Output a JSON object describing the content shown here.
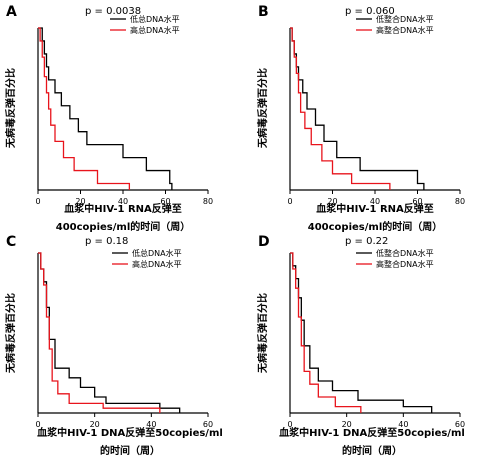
{
  "chart_data": [
    {
      "type": "line",
      "panel": "A",
      "pvalue": "p = 0.0038",
      "xlabel": [
        "血浆中HIV-1 RNA反弹至",
        "400copies/ml的时间（周）"
      ],
      "ylabel": "无病毒反弹百分比",
      "xlim": [
        0,
        80
      ],
      "ylim": [
        0,
        100
      ],
      "xticks": [
        "0",
        "20",
        "40",
        "60",
        "80"
      ],
      "series": [
        {
          "name": "低总DNA水平",
          "color": "#000000",
          "x": [
            0,
            2,
            3,
            4,
            5,
            8,
            11,
            15,
            19,
            23,
            40,
            51,
            62,
            63
          ],
          "y": [
            100,
            92,
            84,
            76,
            68,
            60,
            52,
            44,
            36,
            28,
            20,
            12,
            4,
            0
          ]
        },
        {
          "name": "高总DNA水平",
          "color": "#e8141c",
          "x": [
            0,
            1,
            2,
            3,
            4,
            5,
            6,
            8,
            12,
            17,
            28,
            43
          ],
          "y": [
            100,
            92,
            82,
            70,
            60,
            50,
            40,
            30,
            20,
            12,
            4,
            0
          ]
        }
      ]
    },
    {
      "type": "line",
      "panel": "B",
      "pvalue": "p = 0.060",
      "xlabel": [
        "血浆中HIV-1 RNA反弹至",
        "400copies/ml的时间（周）"
      ],
      "ylabel": "无病毒反弹百分比",
      "xlim": [
        0,
        80
      ],
      "ylim": [
        0,
        100
      ],
      "xticks": [
        "0",
        "20",
        "40",
        "60",
        "80"
      ],
      "series": [
        {
          "name": "低整合DNA水平",
          "color": "#000000",
          "x": [
            0,
            1,
            2,
            3,
            4,
            6,
            8,
            12,
            16,
            22,
            33,
            60,
            63
          ],
          "y": [
            100,
            92,
            84,
            76,
            68,
            60,
            50,
            40,
            30,
            20,
            12,
            4,
            0
          ]
        },
        {
          "name": "高整合DNA水平",
          "color": "#e8141c",
          "x": [
            0,
            1,
            2,
            3,
            4,
            5,
            7,
            10,
            15,
            20,
            29,
            47
          ],
          "y": [
            100,
            92,
            82,
            72,
            60,
            48,
            38,
            28,
            18,
            10,
            4,
            0
          ]
        }
      ]
    },
    {
      "type": "line",
      "panel": "C",
      "pvalue": "p = 0.18",
      "xlabel": [
        "血浆中HIV-1 DNA反弹至50copies/ml",
        "的时间（周）"
      ],
      "ylabel": "无病毒反弹百分比",
      "xlim": [
        0,
        60
      ],
      "ylim": [
        0,
        100
      ],
      "xticks": [
        "0",
        "20",
        "40",
        "60"
      ],
      "series": [
        {
          "name": "低总DNA水平",
          "color": "#000000",
          "x": [
            0,
            1,
            2,
            3,
            4,
            6,
            11,
            15,
            20,
            24,
            43,
            50
          ],
          "y": [
            100,
            90,
            82,
            66,
            46,
            28,
            22,
            16,
            10,
            6,
            3,
            0
          ]
        },
        {
          "name": "高总DNA水平",
          "color": "#e8141c",
          "x": [
            0,
            1,
            2,
            3,
            4,
            5,
            7,
            11,
            23,
            43
          ],
          "y": [
            100,
            90,
            80,
            60,
            40,
            20,
            12,
            6,
            3,
            0
          ]
        }
      ]
    },
    {
      "type": "line",
      "panel": "D",
      "pvalue": "p = 0.22",
      "xlabel": [
        "血浆中HIV-1 DNA反弹至50copies/ml",
        "的时间（周）"
      ],
      "ylabel": "无病毒反弹百分比",
      "xlim": [
        0,
        60
      ],
      "ylim": [
        0,
        100
      ],
      "xticks": [
        "0",
        "20",
        "40",
        "60"
      ],
      "series": [
        {
          "name": "低整合DNA水平",
          "color": "#000000",
          "x": [
            0,
            1,
            2,
            3,
            4,
            5,
            7,
            10,
            15,
            24,
            40,
            50
          ],
          "y": [
            100,
            92,
            84,
            72,
            58,
            42,
            28,
            20,
            14,
            8,
            4,
            0
          ]
        },
        {
          "name": "高整合DNA水平",
          "color": "#e8141c",
          "x": [
            0,
            1,
            2,
            3,
            4,
            5,
            7,
            10,
            16,
            25
          ],
          "y": [
            100,
            90,
            78,
            60,
            42,
            26,
            18,
            10,
            4,
            0
          ]
        }
      ]
    }
  ]
}
